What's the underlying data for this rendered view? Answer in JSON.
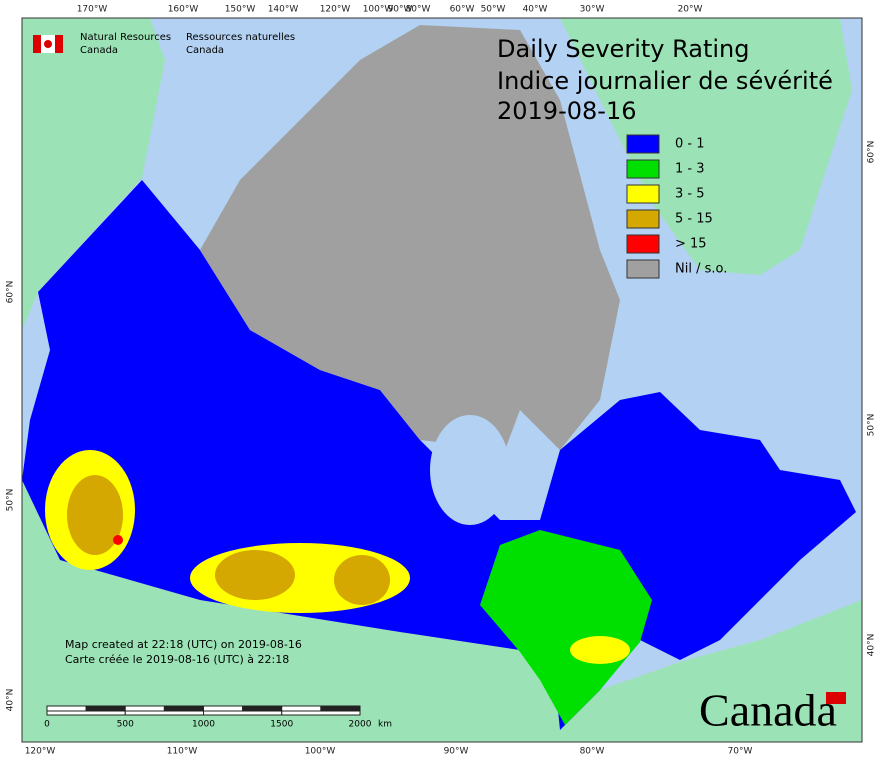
{
  "header": {
    "agency_en": "Natural Resources",
    "country_en": "Canada",
    "agency_fr": "Ressources naturelles",
    "country_fr": "Canada"
  },
  "title": {
    "en": "Daily Severity Rating",
    "fr": "Indice journalier de sévérité",
    "date": "2019-08-16"
  },
  "legend": [
    {
      "label": "0 - 1",
      "color": "#0000ff"
    },
    {
      "label": "1 - 3",
      "color": "#00e000"
    },
    {
      "label": "3 - 5",
      "color": "#ffff00"
    },
    {
      "label": "5 - 15",
      "color": "#d4a800"
    },
    {
      "label": "> 15",
      "color": "#ff0000"
    },
    {
      "label": "Nil / s.o.",
      "color": "#a0a0a0"
    }
  ],
  "graticule": {
    "top": [
      "170°W",
      "160°W",
      "150°W",
      "140°W",
      "120°W",
      "100°W",
      "90°W",
      "80°W",
      "60°W",
      "50°W",
      "40°W",
      "30°W",
      "20°W"
    ],
    "bottom": [
      "120°W",
      "110°W",
      "100°W",
      "90°W",
      "80°W",
      "70°W"
    ],
    "left": [
      "60°N",
      "50°N",
      "40°N"
    ],
    "right": [
      "60°N",
      "50°N",
      "40°N"
    ]
  },
  "scale_bar": {
    "labels": [
      "0",
      "500",
      "1000",
      "1500",
      "2000"
    ],
    "unit": "km"
  },
  "footer": {
    "created_en": "Map created at 22:18 (UTC) on 2019-08-16",
    "created_fr": "Carte créée le 2019-08-16 (UTC) à 22:18"
  },
  "wordmark": "Canada"
}
